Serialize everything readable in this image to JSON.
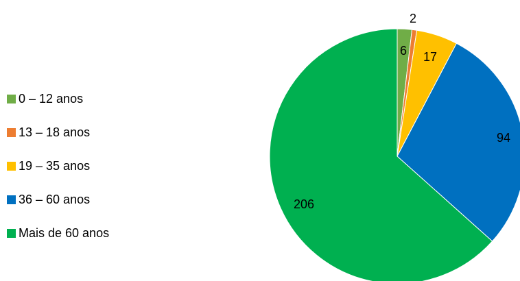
{
  "chart_data": {
    "type": "pie",
    "title": "",
    "legend_position": "left",
    "categories": [
      "0 – 12 anos",
      "13 – 18 anos",
      "19 – 35 anos",
      "36 – 60 anos",
      "Mais de 60 anos"
    ],
    "values": [
      6,
      2,
      17,
      94,
      206
    ],
    "colors": [
      "#70ad47",
      "#ed7d31",
      "#ffc000",
      "#0070c0",
      "#00b050"
    ],
    "data_labels": [
      "6",
      "2",
      "17",
      "94",
      "206"
    ]
  }
}
